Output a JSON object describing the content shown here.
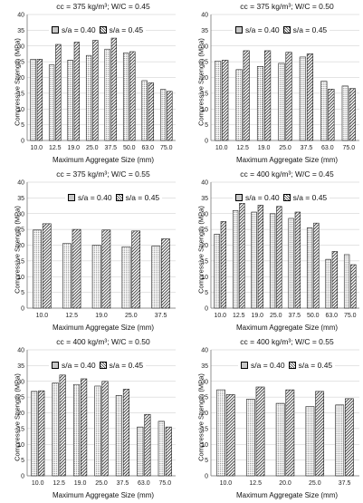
{
  "chart_data": [
    {
      "type": "bar",
      "title": "cc = 375 kg/m³; W/C = 0.45",
      "xlabel": "Maximum Aggregate Size (mm)",
      "ylabel": "Compressive Strength (MPa)",
      "ylim": [
        0,
        40
      ],
      "yticks": [
        0,
        5,
        10,
        15,
        20,
        25,
        30,
        35,
        40
      ],
      "grid": true,
      "legend_position": "top",
      "categories": [
        "10.0",
        "12.5",
        "19.0",
        "25.0",
        "37.5",
        "50.0",
        "63.0",
        "75.0"
      ],
      "series": [
        {
          "name": "s/a = 0.40",
          "values": [
            25.8,
            24.0,
            25.5,
            27.0,
            29.0,
            27.8,
            19.0,
            16.2
          ]
        },
        {
          "name": "s/a = 0.45",
          "values": [
            25.8,
            30.5,
            31.2,
            31.8,
            32.5,
            28.2,
            18.3,
            15.6
          ]
        }
      ]
    },
    {
      "type": "bar",
      "title": "cc = 375 kg/m³; W/C = 0.50",
      "xlabel": "Maximum Aggregate Size (mm)",
      "ylabel": "Compressive Strength (MPa)",
      "ylim": [
        0,
        40
      ],
      "yticks": [
        0,
        5,
        10,
        15,
        20,
        25,
        30,
        35,
        40
      ],
      "grid": true,
      "legend_position": "top",
      "categories": [
        "10.0",
        "12.5",
        "19.0",
        "25.0",
        "37.5",
        "63.0",
        "75.0"
      ],
      "series": [
        {
          "name": "s/a = 0.40",
          "values": [
            25.2,
            22.5,
            23.5,
            24.5,
            26.5,
            18.8,
            17.3
          ]
        },
        {
          "name": "s/a = 0.45",
          "values": [
            25.5,
            28.5,
            28.5,
            28.0,
            27.5,
            16.3,
            16.5
          ]
        }
      ]
    },
    {
      "type": "bar",
      "title": "cc = 375 kg/m³; W/C = 0.55",
      "xlabel": "Maximum Aggregate Size (mm)",
      "ylabel": "Compressive Strength (MPa)",
      "ylim": [
        0,
        40
      ],
      "yticks": [
        0,
        5,
        10,
        15,
        20,
        25,
        30,
        35,
        40
      ],
      "grid": true,
      "legend_position": "top",
      "categories": [
        "10.0",
        "12.5",
        "19.0",
        "25.0",
        "37.5"
      ],
      "series": [
        {
          "name": "s/a = 0.40",
          "values": [
            24.8,
            20.5,
            20.0,
            19.5,
            19.7
          ]
        },
        {
          "name": "s/a = 0.45",
          "values": [
            26.8,
            25.0,
            24.8,
            24.5,
            22.0
          ]
        }
      ]
    },
    {
      "type": "bar",
      "title": "cc = 400 kg/m³; W/C = 0.45",
      "xlabel": "Maximum Aggregate Size (mm)",
      "ylabel": "Compressive Strength (MPa)",
      "ylim": [
        0,
        40
      ],
      "yticks": [
        0,
        5,
        10,
        15,
        20,
        25,
        30,
        35,
        40
      ],
      "grid": true,
      "legend_position": "top",
      "categories": [
        "10.0",
        "12.5",
        "19.0",
        "25.0",
        "37.5",
        "50.0",
        "63.0",
        "75.0"
      ],
      "series": [
        {
          "name": "s/a = 0.40",
          "values": [
            23.5,
            31.0,
            30.5,
            30.0,
            28.5,
            25.5,
            15.5,
            17.0
          ]
        },
        {
          "name": "s/a = 0.45",
          "values": [
            27.5,
            33.3,
            32.7,
            32.3,
            30.5,
            27.0,
            18.0,
            13.8
          ]
        }
      ]
    },
    {
      "type": "bar",
      "title": "cc = 400 kg/m³; W/C = 0.50",
      "xlabel": "Maximum Aggregate Size (mm)",
      "ylabel": "Compressive Strength (MPa)",
      "ylim": [
        0,
        40
      ],
      "yticks": [
        0,
        5,
        10,
        15,
        20,
        25,
        30,
        35,
        40
      ],
      "grid": true,
      "legend_position": "top",
      "categories": [
        "10.0",
        "12.5",
        "19.0",
        "25.0",
        "37.5",
        "63.0",
        "75.0"
      ],
      "series": [
        {
          "name": "s/a = 0.40",
          "values": [
            26.8,
            29.5,
            29.0,
            28.5,
            25.5,
            15.5,
            17.3
          ]
        },
        {
          "name": "s/a = 0.45",
          "values": [
            27.0,
            32.0,
            30.8,
            30.0,
            27.5,
            19.5,
            15.5
          ]
        }
      ]
    },
    {
      "type": "bar",
      "title": "cc = 400 kg/m³; W/C = 0.55",
      "xlabel": "Maximum Aggregate Size (mm)",
      "ylabel": "Compressive Strength (MPa)",
      "ylim": [
        0,
        40
      ],
      "yticks": [
        0,
        5,
        10,
        15,
        20,
        25,
        30,
        35,
        40
      ],
      "grid": true,
      "legend_position": "top",
      "categories": [
        "10.0",
        "12.5",
        "20.0",
        "25.0",
        "37.5"
      ],
      "series": [
        {
          "name": "s/a = 0.40",
          "values": [
            27.3,
            24.3,
            23.0,
            22.0,
            22.5
          ]
        },
        {
          "name": "s/a = 0.45",
          "values": [
            25.8,
            28.2,
            27.3,
            26.8,
            24.5
          ]
        }
      ]
    }
  ]
}
